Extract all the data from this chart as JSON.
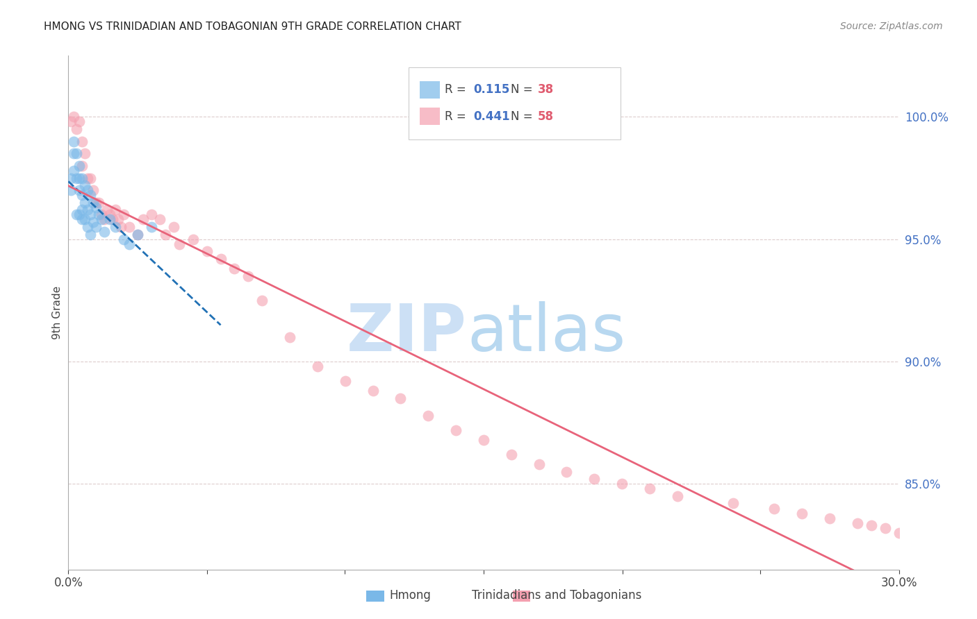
{
  "title": "HMONG VS TRINIDADIAN AND TOBAGONIAN 9TH GRADE CORRELATION CHART",
  "source": "Source: ZipAtlas.com",
  "ylabel": "9th Grade",
  "ytick_labels": [
    "100.0%",
    "95.0%",
    "90.0%",
    "85.0%"
  ],
  "ytick_values": [
    1.0,
    0.95,
    0.9,
    0.85
  ],
  "xmin": 0.0,
  "xmax": 0.3,
  "ymin": 0.815,
  "ymax": 1.025,
  "r_hmong": 0.115,
  "n_hmong": 38,
  "r_trint": 0.441,
  "n_trint": 58,
  "color_hmong": "#7ab8e8",
  "color_trint": "#f4a0b0",
  "color_hmong_line": "#2171b5",
  "color_trint_line": "#e8637a",
  "watermark_zip_color": "#cce0f5",
  "watermark_atlas_color": "#b8d8f0",
  "hmong_x": [
    0.001,
    0.001,
    0.002,
    0.002,
    0.002,
    0.003,
    0.003,
    0.003,
    0.004,
    0.004,
    0.004,
    0.004,
    0.005,
    0.005,
    0.005,
    0.005,
    0.006,
    0.006,
    0.006,
    0.007,
    0.007,
    0.007,
    0.008,
    0.008,
    0.008,
    0.009,
    0.009,
    0.01,
    0.01,
    0.011,
    0.012,
    0.013,
    0.015,
    0.017,
    0.02,
    0.022,
    0.025,
    0.03
  ],
  "hmong_y": [
    0.975,
    0.97,
    0.99,
    0.985,
    0.978,
    0.985,
    0.975,
    0.96,
    0.98,
    0.975,
    0.97,
    0.96,
    0.975,
    0.968,
    0.962,
    0.958,
    0.972,
    0.965,
    0.958,
    0.97,
    0.962,
    0.955,
    0.968,
    0.96,
    0.952,
    0.965,
    0.957,
    0.963,
    0.955,
    0.96,
    0.958,
    0.953,
    0.958,
    0.955,
    0.95,
    0.948,
    0.952,
    0.955
  ],
  "trint_x": [
    0.001,
    0.002,
    0.003,
    0.004,
    0.005,
    0.005,
    0.006,
    0.007,
    0.008,
    0.009,
    0.01,
    0.011,
    0.012,
    0.013,
    0.014,
    0.015,
    0.016,
    0.017,
    0.018,
    0.019,
    0.02,
    0.022,
    0.025,
    0.027,
    0.03,
    0.033,
    0.035,
    0.038,
    0.04,
    0.045,
    0.05,
    0.055,
    0.06,
    0.065,
    0.07,
    0.08,
    0.09,
    0.1,
    0.11,
    0.12,
    0.13,
    0.14,
    0.15,
    0.16,
    0.17,
    0.18,
    0.19,
    0.2,
    0.21,
    0.22,
    0.24,
    0.255,
    0.265,
    0.275,
    0.285,
    0.29,
    0.295,
    0.3
  ],
  "trint_y": [
    0.998,
    1.0,
    0.995,
    0.998,
    0.99,
    0.98,
    0.985,
    0.975,
    0.975,
    0.97,
    0.965,
    0.965,
    0.96,
    0.958,
    0.962,
    0.96,
    0.958,
    0.962,
    0.958,
    0.955,
    0.96,
    0.955,
    0.952,
    0.958,
    0.96,
    0.958,
    0.952,
    0.955,
    0.948,
    0.95,
    0.945,
    0.942,
    0.938,
    0.935,
    0.925,
    0.91,
    0.898,
    0.892,
    0.888,
    0.885,
    0.878,
    0.872,
    0.868,
    0.862,
    0.858,
    0.855,
    0.852,
    0.85,
    0.848,
    0.845,
    0.842,
    0.84,
    0.838,
    0.836,
    0.834,
    0.833,
    0.832,
    0.83
  ]
}
